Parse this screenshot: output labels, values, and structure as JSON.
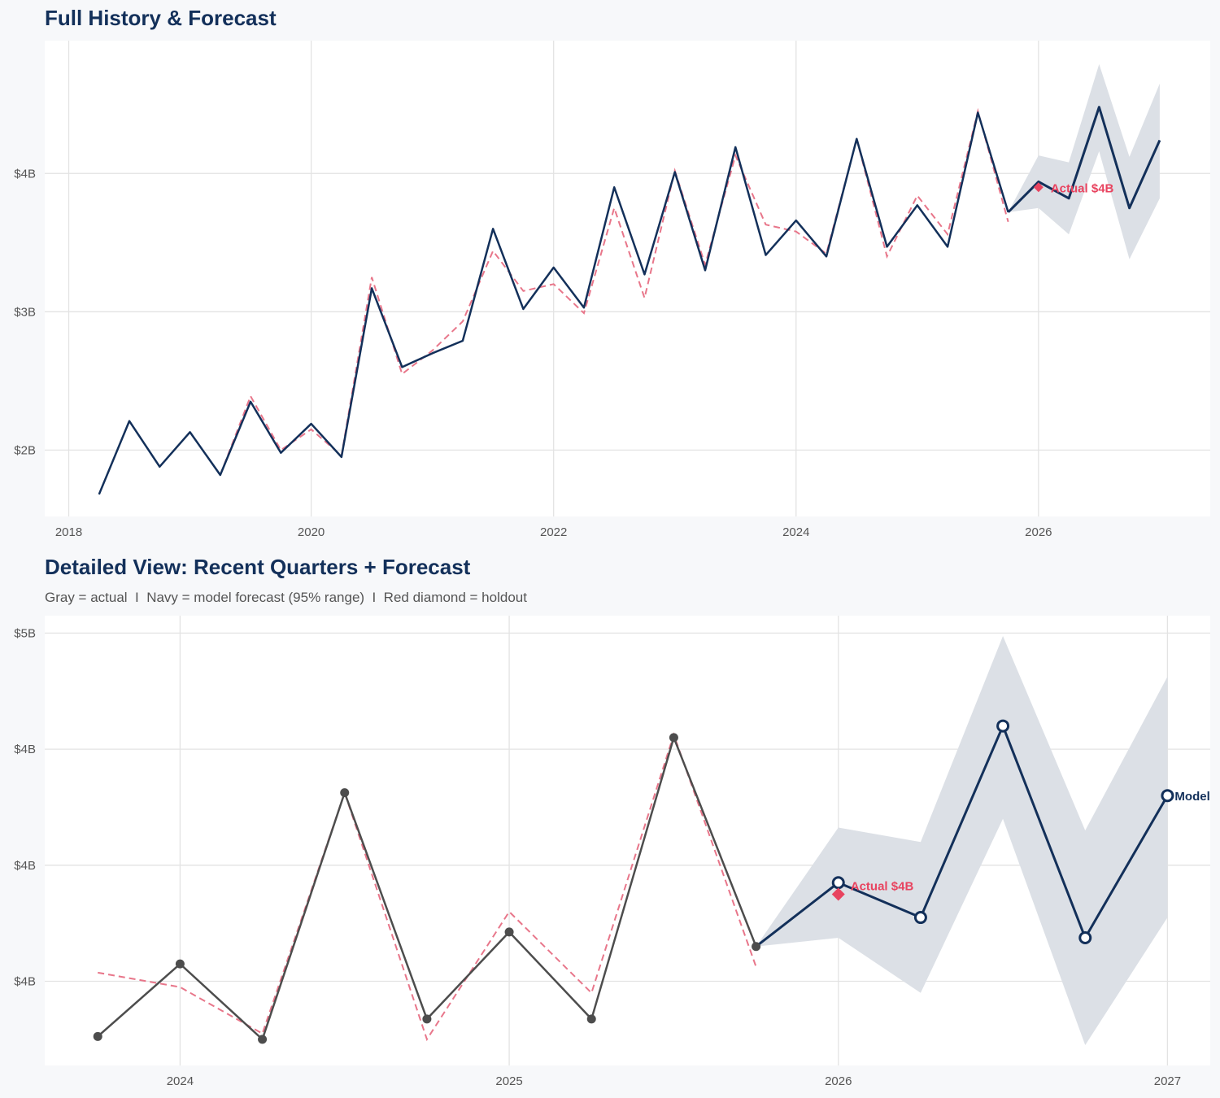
{
  "colors": {
    "navy": "#13305a",
    "gray": "#4d4d4d",
    "fitted": "#e8768a",
    "holdout": "#e8435f",
    "band": "#dce0e6"
  },
  "chart_data": [
    {
      "type": "line",
      "title": "Full History & Forecast",
      "xlim": [
        "2017-10-20",
        "2027-06-01"
      ],
      "ylim": [
        1.52,
        4.96
      ],
      "x_ticks": [
        2018,
        2020,
        2022,
        2024,
        2026
      ],
      "x_tick_labels": [
        "2018",
        "2020",
        "2022",
        "2024",
        "2026"
      ],
      "y_ticks": [
        2,
        3,
        4
      ],
      "y_tick_labels": [
        "$2B",
        "$3B",
        "$4B"
      ],
      "grid": true,
      "actual": {
        "x": [
          "2018-04-01",
          "2018-07-01",
          "2018-10-01",
          "2019-01-01",
          "2019-04-01",
          "2019-07-01",
          "2019-10-01",
          "2020-01-01",
          "2020-04-01",
          "2020-07-01",
          "2020-10-01",
          "2021-01-01",
          "2021-04-01",
          "2021-07-01",
          "2021-10-01",
          "2022-01-01",
          "2022-04-01",
          "2022-07-01",
          "2022-10-01",
          "2023-01-01",
          "2023-04-01",
          "2023-07-01",
          "2023-10-01",
          "2024-01-01",
          "2024-04-01",
          "2024-07-01",
          "2024-10-01",
          "2025-01-01",
          "2025-04-01",
          "2025-07-01",
          "2025-10-01"
        ],
        "y": [
          1.68,
          2.21,
          1.88,
          2.13,
          1.82,
          2.35,
          1.98,
          2.19,
          1.95,
          3.17,
          2.6,
          2.7,
          2.79,
          3.6,
          3.02,
          3.32,
          3.03,
          3.9,
          3.27,
          4.01,
          3.3,
          4.19,
          3.41,
          3.66,
          3.4,
          4.25,
          3.47,
          3.77,
          3.47,
          4.44,
          3.72
        ]
      },
      "fitted": {
        "x": [
          "2019-04-01",
          "2019-07-01",
          "2019-10-01",
          "2020-01-01",
          "2020-04-01",
          "2020-07-01",
          "2020-10-01",
          "2021-01-01",
          "2021-04-01",
          "2021-07-01",
          "2021-10-01",
          "2022-01-01",
          "2022-04-01",
          "2022-07-01",
          "2022-10-01",
          "2023-01-01",
          "2023-04-01",
          "2023-07-01",
          "2023-10-01",
          "2024-01-01",
          "2024-04-01",
          "2024-07-01",
          "2024-10-01",
          "2025-01-01",
          "2025-04-01",
          "2025-07-01",
          "2025-10-01"
        ],
        "y": [
          1.82,
          2.39,
          2.0,
          2.15,
          1.96,
          3.25,
          2.55,
          2.72,
          2.93,
          3.44,
          3.15,
          3.2,
          2.99,
          3.75,
          3.1,
          4.02,
          3.34,
          4.13,
          3.63,
          3.58,
          3.42,
          4.25,
          3.4,
          3.84,
          3.56,
          4.45,
          3.65
        ]
      },
      "forecast": {
        "x": [
          "2026-01-01",
          "2026-04-01",
          "2026-07-01",
          "2026-10-01",
          "2027-01-01"
        ],
        "y": [
          3.94,
          3.82,
          4.48,
          3.75,
          4.24
        ],
        "lower": [
          3.75,
          3.56,
          4.16,
          3.38,
          3.82
        ],
        "upper": [
          4.13,
          4.08,
          4.79,
          4.12,
          4.65
        ]
      },
      "holdout": {
        "x": "2026-01-01",
        "y": 3.9,
        "label": "Actual $4B"
      }
    },
    {
      "type": "line",
      "title": "Detailed View: Recent Quarters + Forecast",
      "subtitle": "Gray = actual  I  Navy = model forecast (95% range)  I  Red diamond = holdout",
      "xlim": [
        "2023-08-03",
        "2027-02-18"
      ],
      "ylim": [
        3.31,
        4.86
      ],
      "x_ticks": [
        2024,
        2025,
        2026,
        2027
      ],
      "x_tick_labels": [
        "2024",
        "2025",
        "2026",
        "2027"
      ],
      "y_ticks": [
        3.6,
        4.0,
        4.4,
        4.8
      ],
      "y_tick_labels": [
        "$4B",
        "$4B",
        "$4B",
        "$5B"
      ],
      "grid": true,
      "actual": {
        "x": [
          "2023-10-01",
          "2024-01-01",
          "2024-04-01",
          "2024-07-01",
          "2024-10-01",
          "2025-01-01",
          "2025-04-01",
          "2025-07-01",
          "2025-10-01"
        ],
        "y": [
          3.41,
          3.66,
          3.4,
          4.25,
          3.47,
          3.77,
          3.47,
          4.44,
          3.72
        ]
      },
      "fitted": {
        "x": [
          "2023-10-01",
          "2024-01-01",
          "2024-04-01",
          "2024-07-01",
          "2024-10-01",
          "2025-01-01",
          "2025-04-01",
          "2025-07-01",
          "2025-10-01"
        ],
        "y": [
          3.63,
          3.58,
          3.42,
          4.25,
          3.4,
          3.84,
          3.56,
          4.45,
          3.65
        ]
      },
      "forecast": {
        "x": [
          "2026-01-01",
          "2026-04-01",
          "2026-07-01",
          "2026-10-01",
          "2027-01-01"
        ],
        "y": [
          3.94,
          3.82,
          4.48,
          3.75,
          4.24
        ],
        "lower": [
          3.75,
          3.56,
          4.16,
          3.38,
          3.82
        ],
        "upper": [
          4.13,
          4.08,
          4.79,
          4.12,
          4.65
        ],
        "end_label": "Model"
      },
      "holdout": {
        "x": "2026-01-01",
        "y": 3.9,
        "label": "Actual $4B"
      }
    }
  ]
}
